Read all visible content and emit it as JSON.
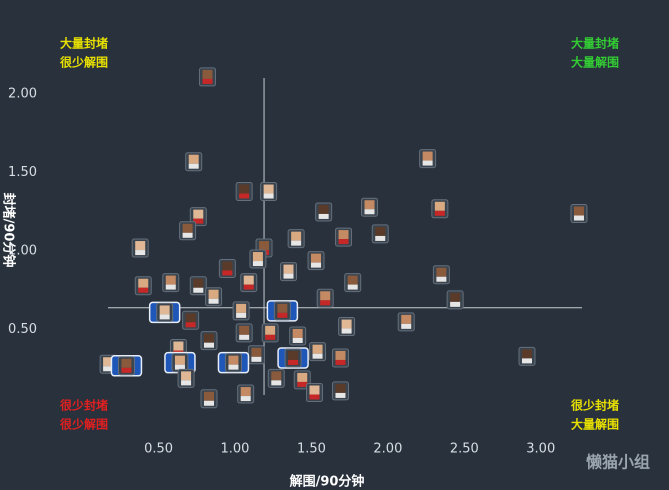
{
  "chart_data": {
    "type": "scatter",
    "x_label": "解围/90分钟",
    "y_label": "封堵/90分钟",
    "x": [
      0.82,
      0.73,
      2.26,
      1.06,
      1.22,
      3.25,
      2.34,
      1.88,
      1.58,
      0.76,
      0.69,
      1.4,
      1.71,
      1.95,
      0.38,
      1.19,
      1.15,
      1.53,
      0.95,
      1.35,
      2.35,
      0.4,
      0.58,
      0.76,
      1.09,
      1.77,
      0.86,
      1.59,
      2.44,
      0.54,
      1.31,
      1.04,
      2.12,
      0.71,
      1.73,
      1.06,
      1.23,
      1.41,
      0.83,
      0.63,
      1.14,
      1.54,
      1.69,
      2.91,
      0.17,
      0.29,
      0.64,
      0.99,
      1.38,
      0.68,
      1.27,
      1.44,
      1.07,
      1.69,
      1.52,
      0.83
    ],
    "y": [
      2.11,
      1.57,
      1.59,
      1.38,
      1.38,
      1.24,
      1.27,
      1.28,
      1.25,
      1.22,
      1.13,
      1.08,
      1.09,
      1.11,
      1.02,
      1.02,
      0.95,
      0.94,
      0.89,
      0.87,
      0.85,
      0.78,
      0.8,
      0.78,
      0.8,
      0.8,
      0.71,
      0.7,
      0.69,
      0.61,
      0.62,
      0.62,
      0.55,
      0.56,
      0.52,
      0.48,
      0.48,
      0.46,
      0.43,
      0.38,
      0.34,
      0.36,
      0.32,
      0.33,
      0.28,
      0.27,
      0.29,
      0.29,
      0.32,
      0.19,
      0.19,
      0.18,
      0.09,
      0.11,
      0.1,
      0.06
    ],
    "highlighted": [
      false,
      false,
      false,
      false,
      false,
      false,
      false,
      false,
      false,
      false,
      false,
      false,
      false,
      false,
      false,
      false,
      false,
      false,
      false,
      false,
      false,
      false,
      false,
      false,
      false,
      false,
      false,
      false,
      false,
      true,
      true,
      false,
      false,
      false,
      false,
      false,
      false,
      false,
      false,
      false,
      false,
      false,
      false,
      false,
      false,
      true,
      true,
      true,
      true,
      false,
      false,
      false,
      false,
      false,
      false,
      false
    ],
    "xlim": [
      -0.21,
      3.78
    ],
    "ylim": [
      -0.33,
      2.6
    ],
    "xticks": [
      {
        "value": 0.5,
        "label": "0.50"
      },
      {
        "value": 1.0,
        "label": "1.00"
      },
      {
        "value": 1.5,
        "label": "1.50"
      },
      {
        "value": 2.0,
        "label": "2.00"
      },
      {
        "value": 2.5,
        "label": "2.50"
      },
      {
        "value": 3.0,
        "label": "3.00"
      }
    ],
    "yticks": [
      {
        "value": 0.5,
        "label": "0.50"
      },
      {
        "value": 1.0,
        "label": "1.00"
      },
      {
        "value": 1.5,
        "label": "1.50"
      },
      {
        "value": 2.0,
        "label": "2.00"
      }
    ],
    "reference_x": 1.19,
    "reference_y": 0.64,
    "quadrants": {
      "top_left": {
        "lines": [
          "大量封堵",
          "很少解围"
        ],
        "color": "#e8e000"
      },
      "top_right": {
        "lines": [
          "大量封堵",
          "大量解围"
        ],
        "color": "#33cc33"
      },
      "bottom_left": {
        "lines": [
          "很少封堵",
          "很少解围"
        ],
        "color": "#e02020"
      },
      "bottom_right": {
        "lines": [
          "很少封堵",
          "大量解围"
        ],
        "color": "#e8e000"
      }
    },
    "watermark": "懒猫小组"
  }
}
